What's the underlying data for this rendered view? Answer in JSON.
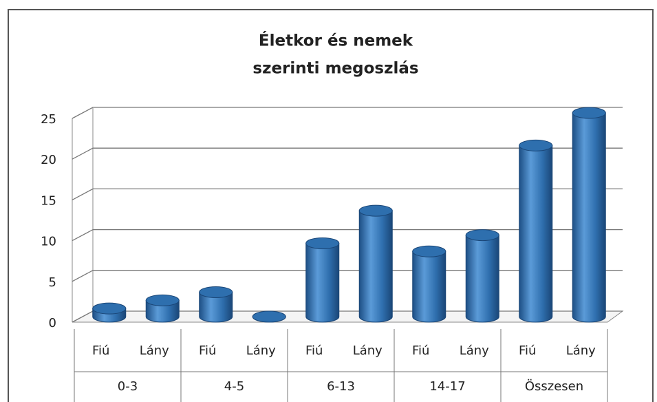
{
  "chart_data": {
    "type": "bar3d",
    "title": [
      "Életkor és nemek",
      "szerinti megoszlás"
    ],
    "categories": [
      "Fiú",
      "Lány",
      "Fiú",
      "Lány",
      "Fiú",
      "Lány",
      "Fiú",
      "Lány",
      "Fiú",
      "Lány"
    ],
    "groups": [
      "0-3",
      "4-5",
      "6-13",
      "14-17",
      "Összesen"
    ],
    "values": [
      1,
      2,
      3,
      0,
      9,
      13,
      8,
      10,
      21,
      25
    ],
    "color": "#2e6fae",
    "ylim": [
      0,
      25
    ],
    "yticks": [
      0,
      5,
      10,
      15,
      20,
      25
    ],
    "grid": true
  }
}
